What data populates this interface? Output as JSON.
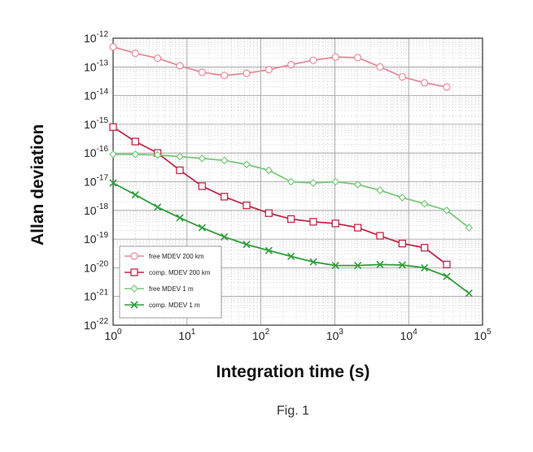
{
  "figure_caption": "Fig. 1",
  "chart_data": {
    "type": "line",
    "xlabel": "Integration time (s)",
    "ylabel": "Allan deviation",
    "x_scale": "log",
    "y_scale": "log",
    "xlim": [
      1,
      100000
    ],
    "ylim": [
      1e-22,
      1e-12
    ],
    "x_ticks": [
      1,
      10,
      100,
      1000,
      10000,
      100000
    ],
    "x_tick_labels": [
      {
        "base": "10",
        "exp": "0"
      },
      {
        "base": "10",
        "exp": "1"
      },
      {
        "base": "10",
        "exp": "2"
      },
      {
        "base": "10",
        "exp": "3"
      },
      {
        "base": "10",
        "exp": "4"
      },
      {
        "base": "10",
        "exp": "5"
      }
    ],
    "y_tick_labels": [
      {
        "base": "10",
        "exp": "-12"
      },
      {
        "base": "10",
        "exp": "-13"
      },
      {
        "base": "10",
        "exp": "-14"
      },
      {
        "base": "10",
        "exp": "-15"
      },
      {
        "base": "10",
        "exp": "-16"
      },
      {
        "base": "10",
        "exp": "-17"
      },
      {
        "base": "10",
        "exp": "-18"
      },
      {
        "base": "10",
        "exp": "-19"
      },
      {
        "base": "10",
        "exp": "-20"
      },
      {
        "base": "10",
        "exp": "-21"
      },
      {
        "base": "10",
        "exp": "-22"
      }
    ],
    "grid": true,
    "legend_position": "bottom-left",
    "series": [
      {
        "name": "free MDEV 200 km",
        "color": "#e88a9c",
        "marker": "circle",
        "x": [
          1,
          2,
          4,
          8,
          16,
          32,
          64,
          128,
          256,
          512,
          1024,
          2048,
          4096,
          8192,
          16384,
          32768
        ],
        "y": [
          5e-13,
          3e-13,
          2e-13,
          1.1e-13,
          6.5e-14,
          5e-14,
          6e-14,
          8e-14,
          1.2e-13,
          1.7e-13,
          2.2e-13,
          2.1e-13,
          1e-13,
          4.5e-14,
          2.8e-14,
          2e-14
        ]
      },
      {
        "name": "comp. MDEV 200 km",
        "color": "#c0294a",
        "marker": "square",
        "x": [
          1,
          2,
          4,
          8,
          16,
          32,
          64,
          128,
          256,
          512,
          1024,
          2048,
          4096,
          8192,
          16384,
          32768
        ],
        "y": [
          8e-16,
          2.5e-16,
          1e-16,
          2.5e-17,
          7e-18,
          3e-18,
          1.5e-18,
          8e-19,
          5e-19,
          4e-19,
          3.5e-19,
          2.5e-19,
          1.3e-19,
          7e-20,
          5e-20,
          1.3e-20
        ]
      },
      {
        "name": "free MDEV 1 m",
        "color": "#7ac87a",
        "marker": "diamond",
        "x": [
          1,
          2,
          4,
          8,
          16,
          32,
          64,
          128,
          256,
          512,
          1024,
          2048,
          4096,
          8192,
          16384,
          32768,
          65536
        ],
        "y": [
          9e-17,
          9e-17,
          8.5e-17,
          7.5e-17,
          6.5e-17,
          5.5e-17,
          4e-17,
          2.5e-17,
          1e-17,
          9e-18,
          1e-17,
          8e-18,
          5e-18,
          2.8e-18,
          1.7e-18,
          1e-18,
          2.5e-19
        ]
      },
      {
        "name": "comp. MDEV 1 m",
        "color": "#2e9e3a",
        "marker": "x",
        "x": [
          1,
          2,
          4,
          8,
          16,
          32,
          64,
          128,
          256,
          512,
          1024,
          2048,
          4096,
          8192,
          16384,
          32768,
          65536
        ],
        "y": [
          9e-18,
          3.5e-18,
          1.3e-18,
          5.5e-19,
          2.5e-19,
          1.2e-19,
          6.5e-20,
          4e-20,
          2.5e-20,
          1.6e-20,
          1.2e-20,
          1.2e-20,
          1.3e-20,
          1.25e-20,
          1e-20,
          5e-21,
          1.3e-21
        ]
      }
    ]
  }
}
